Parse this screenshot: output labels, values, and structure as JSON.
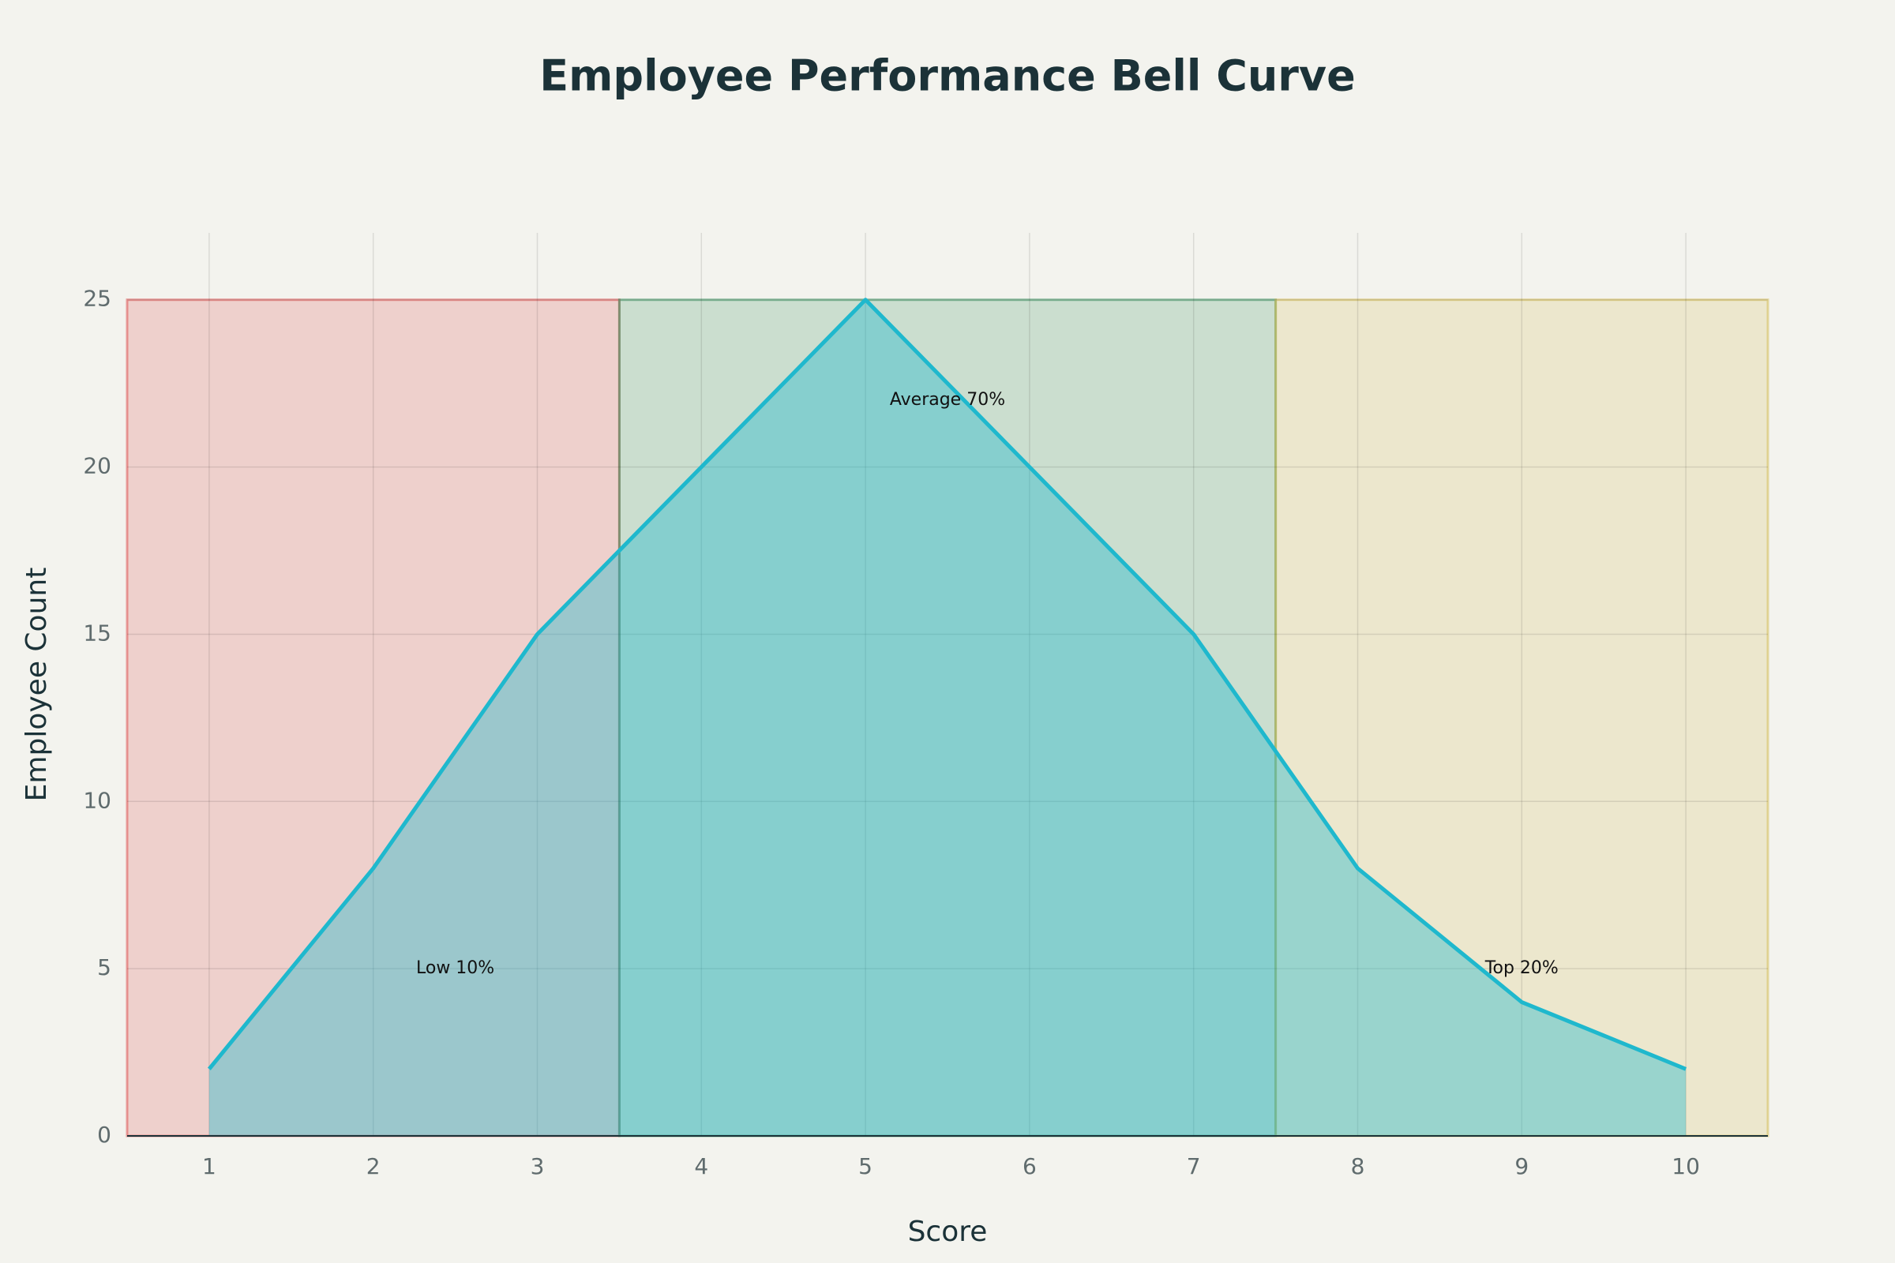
{
  "chart_data": {
    "type": "area",
    "title": "Employee Performance Bell Curve",
    "x_label": "Score",
    "y_label": "Employee Count",
    "x": [
      1,
      2,
      3,
      4,
      5,
      6,
      7,
      8,
      9,
      10
    ],
    "values": [
      2,
      8,
      15,
      20,
      25,
      20,
      15,
      8,
      4,
      2
    ],
    "color": "#1fb8cd",
    "xlim": [
      0.5,
      10.5
    ],
    "ylim": [
      0,
      27
    ],
    "xticks": [
      1,
      2,
      3,
      4,
      5,
      6,
      7,
      8,
      9,
      10
    ],
    "yticks": [
      0,
      5,
      10,
      15,
      20,
      25
    ],
    "grid": true,
    "bands": [
      {
        "x0": 0.5,
        "x1": 3.5,
        "y0": 0,
        "y1": 25,
        "color": "#db4545"
      },
      {
        "x0": 3.5,
        "x1": 7.5,
        "y0": 0,
        "y1": 25,
        "color": "#2e8b57"
      },
      {
        "x0": 7.5,
        "x1": 10.5,
        "y0": 0,
        "y1": 25,
        "color": "#d2ba4c"
      }
    ],
    "annotations": [
      {
        "text": "Low 10%",
        "x": 2.5,
        "y": 5
      },
      {
        "text": "Average 70%",
        "x": 5.5,
        "y": 22
      },
      {
        "text": "Top 20%",
        "x": 9,
        "y": 5
      }
    ]
  }
}
